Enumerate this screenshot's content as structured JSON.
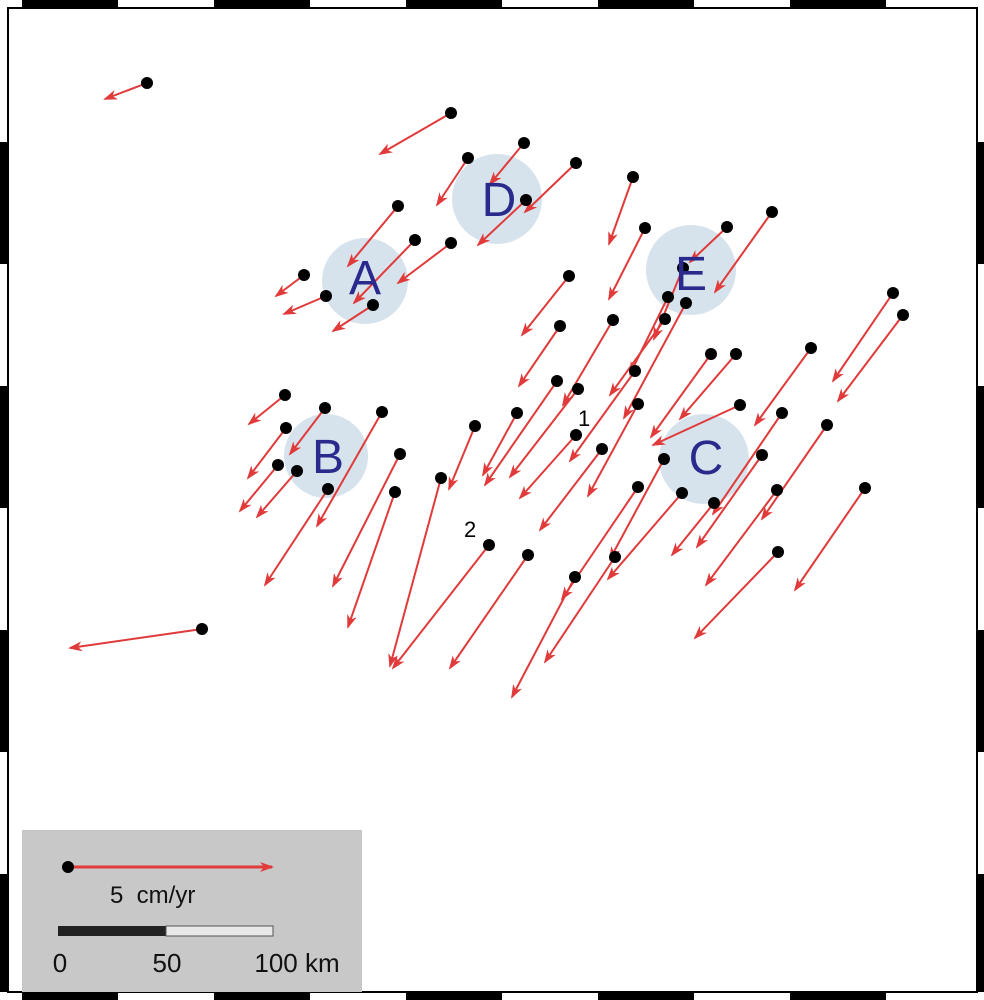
{
  "regions": [
    {
      "name": "A"
    },
    {
      "name": "B"
    },
    {
      "name": "C"
    },
    {
      "name": "D"
    },
    {
      "name": "E"
    }
  ],
  "site_labels": [
    {
      "text": "1"
    },
    {
      "text": "2"
    }
  ],
  "legend": {
    "arrow_label": "5  cm/yr",
    "scalebar_ticks": [
      "0",
      "50",
      "100 km"
    ]
  },
  "colors": {
    "arrow": "#e03a3a",
    "station": "#000000",
    "region_fill": "#d7e3ec",
    "region_text": "#2a2a8c",
    "legend_bg": "#c8c8c8"
  },
  "vectors": [
    [
      147,
      83,
      105,
      99
    ],
    [
      451,
      113,
      380,
      154
    ],
    [
      524,
      143,
      490,
      184
    ],
    [
      468,
      158,
      437,
      205
    ],
    [
      576,
      163,
      525,
      212
    ],
    [
      526,
      200,
      478,
      245
    ],
    [
      633,
      177,
      609,
      244
    ],
    [
      398,
      206,
      348,
      266
    ],
    [
      415,
      240,
      354,
      303
    ],
    [
      451,
      243,
      398,
      283
    ],
    [
      304,
      275,
      276,
      296
    ],
    [
      326,
      296,
      284,
      314
    ],
    [
      373,
      305,
      333,
      331
    ],
    [
      727,
      227,
      690,
      262
    ],
    [
      772,
      212,
      715,
      292
    ],
    [
      645,
      228,
      609,
      299
    ],
    [
      569,
      276,
      522,
      335
    ],
    [
      683,
      268,
      654,
      339
    ],
    [
      668,
      297,
      630,
      374
    ],
    [
      613,
      320,
      563,
      405
    ],
    [
      665,
      319,
      610,
      395
    ],
    [
      686,
      303,
      624,
      418
    ],
    [
      560,
      326,
      519,
      386
    ],
    [
      893,
      293,
      833,
      381
    ],
    [
      903,
      315,
      838,
      401
    ],
    [
      811,
      348,
      755,
      425
    ],
    [
      736,
      354,
      680,
      419
    ],
    [
      711,
      354,
      651,
      437
    ],
    [
      635,
      371,
      570,
      461
    ],
    [
      578,
      389,
      510,
      477
    ],
    [
      557,
      381,
      485,
      485
    ],
    [
      576,
      435,
      520,
      498
    ],
    [
      638,
      404,
      588,
      496
    ],
    [
      517,
      413,
      483,
      475
    ],
    [
      475,
      426,
      449,
      489
    ],
    [
      602,
      449,
      540,
      530
    ],
    [
      285,
      395,
      249,
      424
    ],
    [
      286,
      428,
      248,
      478
    ],
    [
      278,
      465,
      240,
      511
    ],
    [
      297,
      471,
      257,
      517
    ],
    [
      325,
      408,
      290,
      454
    ],
    [
      382,
      412,
      317,
      526
    ],
    [
      400,
      454,
      333,
      586
    ],
    [
      395,
      492,
      348,
      627
    ],
    [
      441,
      478,
      390,
      666
    ],
    [
      328,
      489,
      265,
      585
    ],
    [
      740,
      405,
      653,
      445
    ],
    [
      782,
      413,
      713,
      514
    ],
    [
      827,
      425,
      762,
      519
    ],
    [
      664,
      459,
      610,
      559
    ],
    [
      762,
      455,
      697,
      547
    ],
    [
      638,
      487,
      562,
      599
    ],
    [
      714,
      503,
      672,
      555
    ],
    [
      682,
      493,
      608,
      579
    ],
    [
      777,
      490,
      706,
      585
    ],
    [
      865,
      488,
      795,
      590
    ],
    [
      615,
      557,
      545,
      662
    ],
    [
      575,
      577,
      512,
      697
    ],
    [
      778,
      552,
      695,
      638
    ],
    [
      528,
      555,
      450,
      668
    ],
    [
      489,
      545,
      393,
      668
    ],
    [
      202,
      629,
      70,
      648
    ]
  ]
}
